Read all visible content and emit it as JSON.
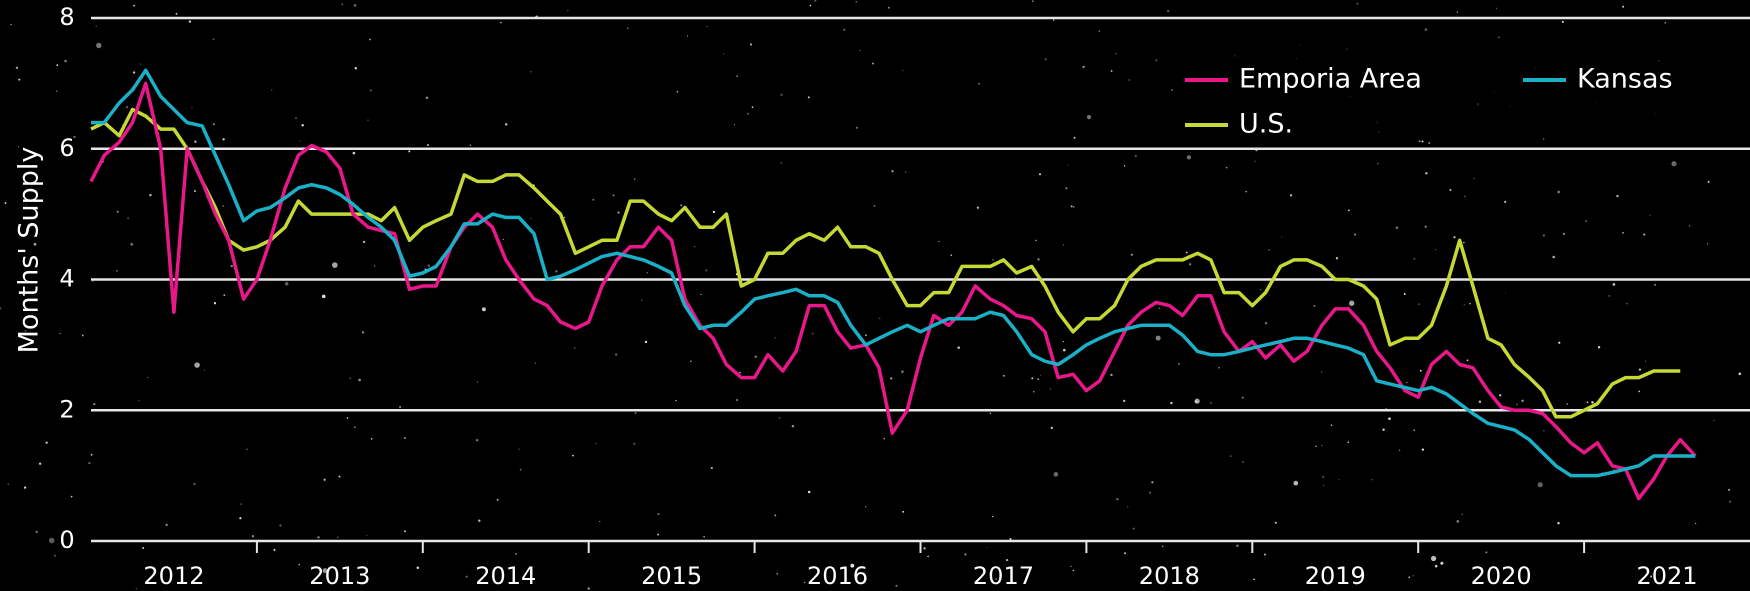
{
  "chart_data": {
    "type": "line",
    "y_label": "Months' Supply",
    "x": [
      2012.0,
      2012.08,
      2012.17,
      2012.25,
      2012.33,
      2012.42,
      2012.5,
      2012.58,
      2012.67,
      2012.75,
      2012.83,
      2012.92,
      2013.0,
      2013.08,
      2013.17,
      2013.25,
      2013.33,
      2013.42,
      2013.5,
      2013.58,
      2013.67,
      2013.75,
      2013.83,
      2013.92,
      2014.0,
      2014.08,
      2014.17,
      2014.25,
      2014.33,
      2014.42,
      2014.5,
      2014.58,
      2014.67,
      2014.75,
      2014.83,
      2014.92,
      2015.0,
      2015.08,
      2015.17,
      2015.25,
      2015.33,
      2015.42,
      2015.5,
      2015.58,
      2015.67,
      2015.75,
      2015.83,
      2015.92,
      2016.0,
      2016.08,
      2016.17,
      2016.25,
      2016.33,
      2016.42,
      2016.5,
      2016.58,
      2016.67,
      2016.75,
      2016.83,
      2016.92,
      2017.0,
      2017.08,
      2017.17,
      2017.25,
      2017.33,
      2017.42,
      2017.5,
      2017.58,
      2017.67,
      2017.75,
      2017.83,
      2017.92,
      2018.0,
      2018.08,
      2018.17,
      2018.25,
      2018.33,
      2018.42,
      2018.5,
      2018.58,
      2018.67,
      2018.75,
      2018.83,
      2018.92,
      2019.0,
      2019.08,
      2019.17,
      2019.25,
      2019.33,
      2019.42,
      2019.5,
      2019.58,
      2019.67,
      2019.75,
      2019.83,
      2019.92,
      2020.0,
      2020.08,
      2020.17,
      2020.25,
      2020.33,
      2020.42,
      2020.5,
      2020.58,
      2020.67,
      2020.75,
      2020.83,
      2020.92,
      2021.0,
      2021.08,
      2021.17,
      2021.25,
      2021.33,
      2021.42,
      2021.5,
      2021.58,
      2021.67
    ],
    "series": [
      {
        "name": "Emporia Area",
        "color": "#e8178a",
        "values": [
          5.5,
          5.9,
          6.1,
          6.4,
          7.0,
          6.0,
          3.5,
          6.0,
          5.5,
          5.0,
          4.6,
          3.7,
          4.0,
          4.6,
          5.4,
          5.9,
          6.05,
          5.95,
          5.7,
          5.0,
          4.8,
          4.75,
          4.7,
          3.85,
          3.9,
          3.9,
          4.5,
          4.8,
          5.0,
          4.8,
          4.3,
          4.0,
          3.7,
          3.6,
          3.35,
          3.25,
          3.35,
          3.9,
          4.3,
          4.5,
          4.5,
          4.8,
          4.6,
          3.7,
          3.3,
          3.1,
          2.7,
          2.5,
          2.5,
          2.85,
          2.6,
          2.9,
          3.6,
          3.6,
          3.2,
          2.95,
          3.0,
          2.65,
          1.65,
          2.0,
          2.8,
          3.45,
          3.3,
          3.5,
          3.9,
          3.7,
          3.6,
          3.45,
          3.4,
          3.2,
          2.5,
          2.55,
          2.3,
          2.45,
          2.9,
          3.3,
          3.5,
          3.65,
          3.6,
          3.45,
          3.75,
          3.75,
          3.2,
          2.9,
          3.05,
          2.8,
          3.0,
          2.75,
          2.9,
          3.3,
          3.55,
          3.55,
          3.3,
          2.9,
          2.65,
          2.3,
          2.2,
          2.7,
          2.9,
          2.7,
          2.65,
          2.3,
          2.05,
          2.0,
          2.0,
          1.95,
          1.75,
          1.5,
          1.35,
          1.5,
          1.15,
          1.1,
          0.65,
          0.95,
          1.3,
          1.55,
          1.3
        ]
      },
      {
        "name": "Kansas",
        "color": "#1ab0c8",
        "values": [
          6.4,
          6.4,
          6.7,
          6.9,
          7.2,
          6.8,
          6.6,
          6.4,
          6.35,
          5.9,
          5.45,
          4.9,
          5.05,
          5.1,
          5.25,
          5.4,
          5.45,
          5.4,
          5.3,
          5.15,
          4.95,
          4.8,
          4.6,
          4.05,
          4.1,
          4.2,
          4.5,
          4.85,
          4.85,
          5.0,
          4.95,
          4.95,
          4.7,
          4.0,
          4.05,
          4.15,
          4.25,
          4.35,
          4.4,
          4.35,
          4.3,
          4.2,
          4.1,
          3.6,
          3.25,
          3.3,
          3.3,
          3.5,
          3.7,
          3.75,
          3.8,
          3.85,
          3.75,
          3.75,
          3.65,
          3.3,
          3.0,
          3.1,
          3.2,
          3.3,
          3.2,
          3.3,
          3.4,
          3.4,
          3.4,
          3.5,
          3.45,
          3.2,
          2.85,
          2.75,
          2.7,
          2.85,
          3.0,
          3.1,
          3.2,
          3.25,
          3.3,
          3.3,
          3.3,
          3.15,
          2.9,
          2.85,
          2.85,
          2.9,
          2.95,
          3.0,
          3.05,
          3.1,
          3.1,
          3.05,
          3.0,
          2.95,
          2.85,
          2.45,
          2.4,
          2.35,
          2.3,
          2.35,
          2.25,
          2.1,
          1.95,
          1.8,
          1.75,
          1.7,
          1.55,
          1.35,
          1.15,
          1.0,
          1.0,
          1.0,
          1.05,
          1.1,
          1.15,
          1.3,
          1.3,
          1.3,
          1.3
        ]
      },
      {
        "name": "U.S.",
        "color": "#c5d834",
        "values": [
          6.3,
          6.4,
          6.2,
          6.6,
          6.5,
          6.3,
          6.3,
          6.0,
          5.5,
          5.1,
          4.6,
          4.45,
          4.5,
          4.6,
          4.8,
          5.2,
          5.0,
          5.0,
          5.0,
          5.0,
          5.0,
          4.9,
          5.1,
          4.6,
          4.8,
          4.9,
          5.0,
          5.6,
          5.5,
          5.5,
          5.6,
          5.6,
          5.4,
          5.2,
          5.0,
          4.4,
          4.5,
          4.6,
          4.6,
          5.2,
          5.2,
          5.0,
          4.9,
          5.1,
          4.8,
          4.8,
          5.0,
          3.9,
          4.0,
          4.4,
          4.4,
          4.6,
          4.7,
          4.6,
          4.8,
          4.5,
          4.5,
          4.4,
          4.0,
          3.6,
          3.6,
          3.8,
          3.8,
          4.2,
          4.2,
          4.2,
          4.3,
          4.1,
          4.2,
          3.9,
          3.5,
          3.2,
          3.4,
          3.4,
          3.6,
          4.0,
          4.2,
          4.3,
          4.3,
          4.3,
          4.4,
          4.3,
          3.8,
          3.8,
          3.6,
          3.8,
          4.2,
          4.3,
          4.3,
          4.2,
          4.0,
          4.0,
          3.9,
          3.7,
          3.0,
          3.1,
          3.1,
          3.3,
          3.9,
          4.6,
          3.9,
          3.1,
          3.0,
          2.7,
          2.5,
          2.3,
          1.9,
          1.9,
          2.0,
          2.1,
          2.4,
          2.5,
          2.5,
          2.6,
          2.6,
          2.6,
          null
        ]
      }
    ],
    "xlim": [
      2012,
      2022
    ],
    "xticks": [
      {
        "value": 2012.5,
        "label": "2012"
      },
      {
        "value": 2013.5,
        "label": "2013"
      },
      {
        "value": 2014.5,
        "label": "2014"
      },
      {
        "value": 2015.5,
        "label": "2015"
      },
      {
        "value": 2016.5,
        "label": "2016"
      },
      {
        "value": 2017.5,
        "label": "2017"
      },
      {
        "value": 2018.5,
        "label": "2018"
      },
      {
        "value": 2019.5,
        "label": "2019"
      },
      {
        "value": 2020.5,
        "label": "2020"
      },
      {
        "value": 2021.5,
        "label": "2021"
      }
    ],
    "xminorticks": [
      2013,
      2014,
      2015,
      2016,
      2017,
      2018,
      2019,
      2020,
      2021
    ],
    "ylim": [
      0,
      8
    ],
    "yticks": [
      0,
      2,
      4,
      6,
      8
    ],
    "grid": true,
    "legend": "upper right"
  }
}
